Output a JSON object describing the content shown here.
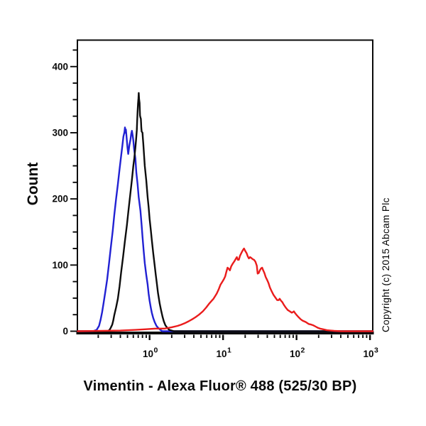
{
  "figure": {
    "title": "Vimentin - Alexa Fluor® 488 (525/30 BP)",
    "ylabel": "Count",
    "copyright": "Copyright (c) 2015 Abcam Plc"
  },
  "chart_data": {
    "type": "line",
    "subtype": "flow-cytometry-histogram-overlay",
    "title": "Vimentin - Alexa Fluor® 488 (525/30 BP)",
    "xlabel": "Vimentin - Alexa Fluor® 488 (525/30 BP)",
    "ylabel": "Count",
    "x_scale": "log10",
    "xlim": [
      0.104,
      1090
    ],
    "ylim": [
      0,
      440
    ],
    "x_major_ticks": [
      1,
      10,
      100,
      1000
    ],
    "x_tick_exponents": [
      0,
      1,
      2,
      3
    ],
    "x_tick_base": "10",
    "y_major_ticks": [
      0,
      100,
      200,
      300,
      400
    ],
    "y_minor_interval": 25,
    "grid": "off",
    "legend_position": "none",
    "frame_color": "#0a0a0a",
    "series": [
      {
        "name": "blue-curve",
        "color": "#2121d3",
        "peak": {
          "x": 0.47,
          "count": 308
        },
        "points": [
          [
            0.105,
            0
          ],
          [
            0.17,
            0
          ],
          [
            0.19,
            2
          ],
          [
            0.205,
            8
          ],
          [
            0.215,
            17
          ],
          [
            0.225,
            28
          ],
          [
            0.236,
            42
          ],
          [
            0.25,
            60
          ],
          [
            0.264,
            78
          ],
          [
            0.28,
            102
          ],
          [
            0.295,
            125
          ],
          [
            0.315,
            152
          ],
          [
            0.33,
            175
          ],
          [
            0.35,
            200
          ],
          [
            0.37,
            222
          ],
          [
            0.39,
            245
          ],
          [
            0.41,
            265
          ],
          [
            0.425,
            280
          ],
          [
            0.44,
            294
          ],
          [
            0.455,
            301
          ],
          [
            0.462,
            308
          ],
          [
            0.468,
            300
          ],
          [
            0.475,
            305
          ],
          [
            0.483,
            297
          ],
          [
            0.49,
            288
          ],
          [
            0.5,
            277
          ],
          [
            0.512,
            268
          ],
          [
            0.53,
            281
          ],
          [
            0.55,
            290
          ],
          [
            0.562,
            298
          ],
          [
            0.575,
            303
          ],
          [
            0.59,
            295
          ],
          [
            0.6,
            288
          ],
          [
            0.615,
            275
          ],
          [
            0.64,
            261
          ],
          [
            0.66,
            240
          ],
          [
            0.686,
            222
          ],
          [
            0.71,
            203
          ],
          [
            0.75,
            182
          ],
          [
            0.78,
            160
          ],
          [
            0.8,
            143
          ],
          [
            0.83,
            122
          ],
          [
            0.86,
            103
          ],
          [
            0.9,
            85
          ],
          [
            0.94,
            71
          ],
          [
            0.97,
            57
          ],
          [
            1.0,
            46
          ],
          [
            1.04,
            35
          ],
          [
            1.07,
            28
          ],
          [
            1.12,
            20
          ],
          [
            1.17,
            14
          ],
          [
            1.24,
            8
          ],
          [
            1.31,
            5
          ],
          [
            1.4,
            2
          ],
          [
            1.49,
            0
          ],
          [
            1090,
            0
          ]
        ]
      },
      {
        "name": "black-curve",
        "color": "#0d0d0d",
        "peak": {
          "x": 0.71,
          "count": 360
        },
        "points": [
          [
            0.105,
            0
          ],
          [
            0.27,
            0
          ],
          [
            0.285,
            2
          ],
          [
            0.295,
            5
          ],
          [
            0.31,
            10
          ],
          [
            0.32,
            16
          ],
          [
            0.33,
            24
          ],
          [
            0.35,
            36
          ],
          [
            0.37,
            49
          ],
          [
            0.39,
            68
          ],
          [
            0.41,
            89
          ],
          [
            0.435,
            112
          ],
          [
            0.46,
            135
          ],
          [
            0.49,
            160
          ],
          [
            0.515,
            182
          ],
          [
            0.545,
            206
          ],
          [
            0.574,
            229
          ],
          [
            0.6,
            250
          ],
          [
            0.62,
            262
          ],
          [
            0.64,
            278
          ],
          [
            0.655,
            290
          ],
          [
            0.67,
            304
          ],
          [
            0.678,
            318
          ],
          [
            0.686,
            332
          ],
          [
            0.695,
            344
          ],
          [
            0.705,
            352
          ],
          [
            0.712,
            360
          ],
          [
            0.72,
            351
          ],
          [
            0.73,
            345
          ],
          [
            0.735,
            335
          ],
          [
            0.74,
            326
          ],
          [
            0.75,
            323
          ],
          [
            0.76,
            321
          ],
          [
            0.765,
            315
          ],
          [
            0.77,
            308
          ],
          [
            0.78,
            302
          ],
          [
            0.8,
            300
          ],
          [
            0.81,
            292
          ],
          [
            0.82,
            284
          ],
          [
            0.84,
            266
          ],
          [
            0.86,
            250
          ],
          [
            0.9,
            228
          ],
          [
            0.94,
            203
          ],
          [
            0.97,
            188
          ],
          [
            1.0,
            170
          ],
          [
            1.04,
            152
          ],
          [
            1.07,
            138
          ],
          [
            1.12,
            118
          ],
          [
            1.17,
            100
          ],
          [
            1.21,
            86
          ],
          [
            1.25,
            74
          ],
          [
            1.3,
            58
          ],
          [
            1.37,
            42
          ],
          [
            1.43,
            32
          ],
          [
            1.5,
            22
          ],
          [
            1.56,
            15
          ],
          [
            1.64,
            9
          ],
          [
            1.74,
            5
          ],
          [
            1.85,
            2
          ],
          [
            2.0,
            1
          ],
          [
            2.15,
            0
          ],
          [
            1090,
            0
          ]
        ]
      },
      {
        "name": "red-curve",
        "color": "#ea1c1c",
        "peak": {
          "x": 19,
          "count": 125
        },
        "points": [
          [
            0.105,
            0
          ],
          [
            0.4,
            1
          ],
          [
            0.65,
            2
          ],
          [
            0.9,
            3
          ],
          [
            1.2,
            4
          ],
          [
            1.6,
            4
          ],
          [
            2.0,
            6
          ],
          [
            2.4,
            8
          ],
          [
            2.7,
            10
          ],
          [
            3.0,
            12
          ],
          [
            3.4,
            15
          ],
          [
            3.8,
            18
          ],
          [
            4.2,
            21
          ],
          [
            4.7,
            25
          ],
          [
            5.3,
            30
          ],
          [
            5.9,
            36
          ],
          [
            6.5,
            42
          ],
          [
            7.0,
            46
          ],
          [
            7.4,
            49
          ],
          [
            7.8,
            53
          ],
          [
            8.2,
            57
          ],
          [
            8.7,
            63
          ],
          [
            9.2,
            70
          ],
          [
            9.8,
            75
          ],
          [
            10.3,
            79
          ],
          [
            10.7,
            83
          ],
          [
            11.1,
            90
          ],
          [
            11.5,
            96
          ],
          [
            12.0,
            94
          ],
          [
            12.4,
            92
          ],
          [
            12.9,
            98
          ],
          [
            13.5,
            102
          ],
          [
            14.3,
            106
          ],
          [
            15.0,
            110
          ],
          [
            15.4,
            112
          ],
          [
            15.9,
            108
          ],
          [
            16.4,
            108
          ],
          [
            17.0,
            114
          ],
          [
            17.9,
            119
          ],
          [
            18.7,
            123
          ],
          [
            19.3,
            125
          ],
          [
            20.1,
            121
          ],
          [
            20.9,
            118
          ],
          [
            21.7,
            113
          ],
          [
            22.5,
            110
          ],
          [
            23.3,
            112
          ],
          [
            24.1,
            111
          ],
          [
            25.2,
            109
          ],
          [
            26.4,
            108
          ],
          [
            27.6,
            105
          ],
          [
            28.8,
            99
          ],
          [
            29.6,
            87
          ],
          [
            30.6,
            88
          ],
          [
            31.7,
            92
          ],
          [
            32.9,
            95
          ],
          [
            34.0,
            96
          ],
          [
            35.2,
            92
          ],
          [
            36.5,
            88
          ],
          [
            38.0,
            82
          ],
          [
            39.6,
            78
          ],
          [
            41.5,
            73
          ],
          [
            43.5,
            66
          ],
          [
            46.0,
            60
          ],
          [
            48.6,
            55
          ],
          [
            51.5,
            51
          ],
          [
            54.5,
            47
          ],
          [
            57.0,
            47
          ],
          [
            59.0,
            49
          ],
          [
            61.5,
            46
          ],
          [
            64.0,
            44
          ],
          [
            67.0,
            40
          ],
          [
            71.0,
            36
          ],
          [
            76.0,
            32
          ],
          [
            81.0,
            30
          ],
          [
            86.0,
            28
          ],
          [
            89.5,
            29
          ],
          [
            92.0,
            30
          ],
          [
            96.0,
            27
          ],
          [
            101.0,
            24
          ],
          [
            107.0,
            21
          ],
          [
            114.0,
            18
          ],
          [
            121.0,
            16
          ],
          [
            133.0,
            14
          ],
          [
            146.0,
            11
          ],
          [
            159.0,
            10
          ],
          [
            168.0,
            9
          ],
          [
            182.0,
            7
          ],
          [
            196.0,
            5
          ],
          [
            208.0,
            4
          ],
          [
            228.0,
            3
          ],
          [
            260.0,
            1.5
          ],
          [
            292.0,
            1
          ],
          [
            325.0,
            0.5
          ],
          [
            400.0,
            0
          ],
          [
            1090,
            0
          ]
        ]
      }
    ]
  }
}
